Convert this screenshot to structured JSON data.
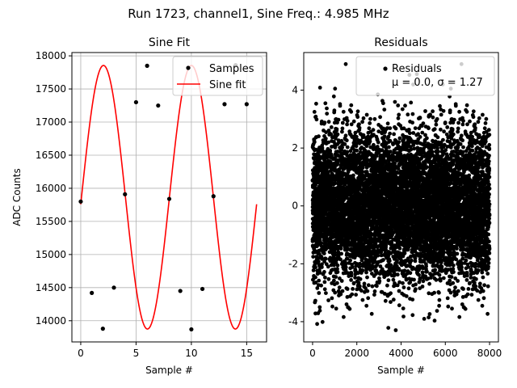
{
  "suptitle": "Run 1723, channel1, Sine Freq.: 4.985 MHz",
  "chart_data": [
    {
      "type": "line",
      "title": "Sine Fit",
      "xlabel": "Sample #",
      "ylabel": "ADC Counts",
      "xlim": [
        -0.8,
        16.8
      ],
      "ylim": [
        13680,
        18050
      ],
      "xticks": [
        0,
        5,
        10,
        15
      ],
      "yticks": [
        14000,
        14500,
        15000,
        15500,
        16000,
        16500,
        17000,
        17500,
        18000
      ],
      "grid": true,
      "legend": {
        "placement": "top-right",
        "entries": [
          "Samples",
          "Sine fit"
        ]
      },
      "series": [
        {
          "name": "Samples",
          "kind": "scatter",
          "color": "#000000",
          "x": [
            0,
            1,
            2,
            3,
            4,
            5,
            6,
            7,
            8,
            9,
            10,
            11,
            12,
            13,
            14,
            15
          ],
          "y": [
            15800,
            14420,
            13880,
            14500,
            15910,
            17300,
            17850,
            17250,
            15840,
            14450,
            13870,
            14480,
            15880,
            17270,
            17860,
            17270
          ]
        },
        {
          "name": "Sine fit",
          "kind": "line",
          "color": "#ff0000",
          "function": {
            "amplitude": 1990,
            "offset": 15865,
            "period": 7.95,
            "phase": 6.23,
            "x_start": 0,
            "x_end": 15.9
          }
        }
      ]
    },
    {
      "type": "scatter",
      "title": "Residuals",
      "xlabel": "Sample #",
      "ylabel": "",
      "xlim": [
        -400,
        8400
      ],
      "ylim": [
        -4.7,
        5.3
      ],
      "xticks": [
        0,
        2000,
        4000,
        6000,
        8000
      ],
      "yticks": [
        -4,
        -2,
        0,
        2,
        4
      ],
      "grid": false,
      "legend": {
        "placement": "top-right",
        "entries": [
          "Residuals"
        ]
      },
      "series": [
        {
          "name": "Residuals",
          "color": "#000000",
          "mu": 0.0,
          "sigma": 1.27,
          "n_points": 8000,
          "stats_label": "μ = 0.0, σ = 1.27"
        }
      ]
    }
  ]
}
